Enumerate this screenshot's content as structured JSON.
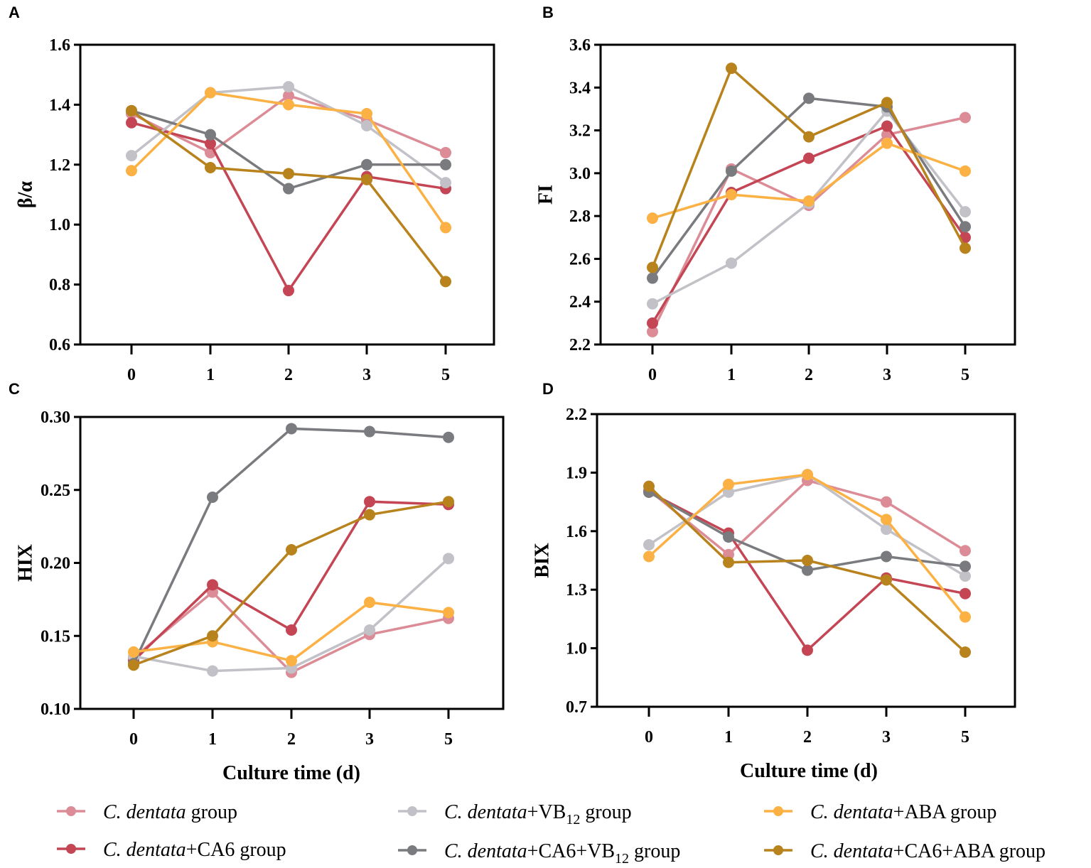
{
  "chart_data": [
    {
      "type": "line",
      "panel": "A",
      "ylabel": "β/α",
      "xlabel": "",
      "categories": [
        "0",
        "1",
        "2",
        "3",
        "5"
      ],
      "ylim": [
        0.6,
        1.6
      ],
      "yticks": [
        "0.6",
        "0.8",
        "1.0",
        "1.2",
        "1.4",
        "1.6"
      ],
      "grid": false,
      "series": [
        {
          "values": [
            1.37,
            1.24,
            1.43,
            1.35,
            1.24
          ]
        },
        {
          "values": [
            1.34,
            1.27,
            0.78,
            1.16,
            1.12
          ]
        },
        {
          "values": [
            1.23,
            1.44,
            1.46,
            1.33,
            1.14
          ]
        },
        {
          "values": [
            1.38,
            1.3,
            1.12,
            1.2,
            1.2
          ]
        },
        {
          "values": [
            1.18,
            1.44,
            1.4,
            1.37,
            0.99
          ]
        },
        {
          "values": [
            1.38,
            1.19,
            1.17,
            1.15,
            0.81
          ]
        }
      ]
    },
    {
      "type": "line",
      "panel": "B",
      "ylabel": "FI",
      "xlabel": "",
      "categories": [
        "0",
        "1",
        "2",
        "3",
        "5"
      ],
      "ylim": [
        2.2,
        3.6
      ],
      "yticks": [
        "2.2",
        "2.4",
        "2.6",
        "2.8",
        "3.0",
        "3.2",
        "3.4",
        "3.6"
      ],
      "grid": false,
      "series": [
        {
          "values": [
            2.26,
            3.02,
            2.85,
            3.18,
            3.26
          ]
        },
        {
          "values": [
            2.3,
            2.91,
            3.07,
            3.22,
            2.7
          ]
        },
        {
          "values": [
            2.39,
            2.58,
            2.86,
            3.29,
            2.82
          ]
        },
        {
          "values": [
            2.51,
            3.01,
            3.35,
            3.31,
            2.75
          ]
        },
        {
          "values": [
            2.79,
            2.9,
            2.87,
            3.14,
            3.01
          ]
        },
        {
          "values": [
            2.56,
            3.49,
            3.17,
            3.33,
            2.65
          ]
        }
      ]
    },
    {
      "type": "line",
      "panel": "C",
      "ylabel": "HIX",
      "xlabel": "Culture time (d)",
      "categories": [
        "0",
        "1",
        "2",
        "3",
        "5"
      ],
      "ylim": [
        0.1,
        0.3
      ],
      "yticks": [
        "0.10",
        "0.15",
        "0.20",
        "0.25",
        "0.30"
      ],
      "grid": false,
      "series": [
        {
          "values": [
            0.135,
            0.18,
            0.125,
            0.151,
            0.162
          ]
        },
        {
          "values": [
            0.133,
            0.185,
            0.154,
            0.242,
            0.24
          ]
        },
        {
          "values": [
            0.136,
            0.126,
            0.128,
            0.154,
            0.203
          ]
        },
        {
          "values": [
            0.131,
            0.245,
            0.292,
            0.29,
            0.286
          ]
        },
        {
          "values": [
            0.139,
            0.146,
            0.133,
            0.173,
            0.166
          ]
        },
        {
          "values": [
            0.13,
            0.15,
            0.209,
            0.233,
            0.242
          ]
        }
      ]
    },
    {
      "type": "line",
      "panel": "D",
      "ylabel": "BIX",
      "xlabel": "Culture time (d)",
      "categories": [
        "0",
        "1",
        "2",
        "3",
        "5"
      ],
      "ylim": [
        0.7,
        2.2
      ],
      "yticks": [
        "0.7",
        "1.0",
        "1.3",
        "1.6",
        "1.9",
        "2.2"
      ],
      "grid": false,
      "series": [
        {
          "values": [
            1.81,
            1.48,
            1.86,
            1.75,
            1.5
          ]
        },
        {
          "values": [
            1.8,
            1.59,
            0.99,
            1.36,
            1.28
          ]
        },
        {
          "values": [
            1.53,
            1.8,
            1.89,
            1.61,
            1.37
          ]
        },
        {
          "values": [
            1.8,
            1.57,
            1.4,
            1.47,
            1.42
          ]
        },
        {
          "values": [
            1.47,
            1.84,
            1.89,
            1.66,
            1.16
          ]
        },
        {
          "values": [
            1.83,
            1.44,
            1.45,
            1.35,
            0.98
          ]
        }
      ]
    }
  ],
  "legend": {
    "placement": "bottom",
    "items": [
      {
        "italic": "C. dentata",
        "text": " group",
        "sub": "",
        "tail": "",
        "color": "#dc8c96"
      },
      {
        "italic": "C. dentata",
        "text": "+CA6 group",
        "sub": "",
        "tail": "",
        "color": "#c44654"
      },
      {
        "italic": "C. dentata",
        "text": "+VB",
        "sub": "12",
        "tail": " group",
        "color": "#c2c1c7"
      },
      {
        "italic": "C. dentata",
        "text": "+CA6+VB",
        "sub": "12",
        "tail": "  group",
        "color": "#7a7b7f"
      },
      {
        "italic": "C. dentata",
        "text": "+ABA group",
        "sub": "",
        "tail": "",
        "color": "#fbb143"
      },
      {
        "italic": "C. dentata",
        "text": "+CA6+ABA group",
        "sub": "",
        "tail": "",
        "color": "#b8821c"
      }
    ]
  }
}
